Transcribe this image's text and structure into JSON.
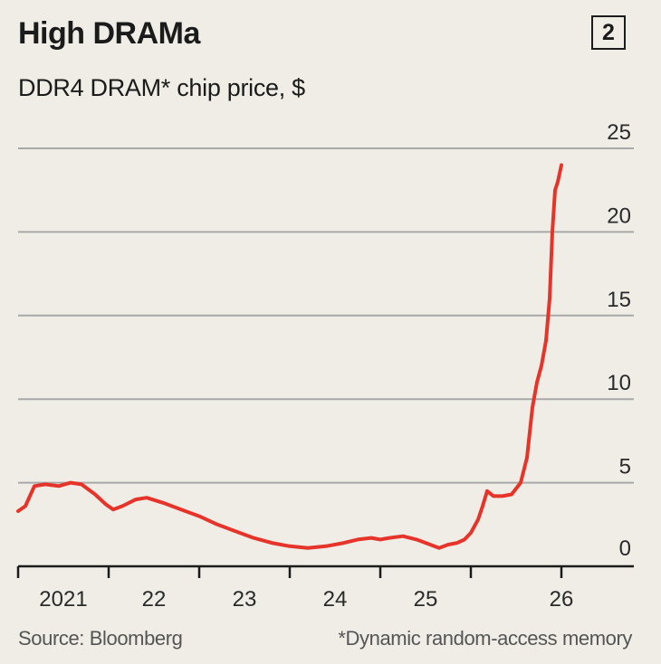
{
  "badge": "2",
  "source": "Source: Bloomberg",
  "footnote": "*Dynamic random-access memory",
  "colors": {
    "line": "#e6342b",
    "grid": "#a9a9a9",
    "axis": "#1b1b1b",
    "background": "#efede5"
  },
  "chart_data": {
    "type": "line",
    "title": "High DRAMa",
    "subtitle": "DDR4 DRAM* chip price, $",
    "ylim": [
      0,
      25
    ],
    "y_ticks": [
      0,
      5,
      10,
      15,
      20,
      25
    ],
    "x_start": 2020.0,
    "x_ticks": [
      2021,
      2022,
      2023,
      2024,
      2025,
      2026
    ],
    "x_tick_labels": [
      "2021",
      "22",
      "23",
      "24",
      "25",
      "26"
    ],
    "grid": true,
    "series": [
      {
        "values": [
          {
            "x": 2020.0,
            "y": 3.3
          },
          {
            "x": 2020.08,
            "y": 3.6
          },
          {
            "x": 2020.18,
            "y": 4.8
          },
          {
            "x": 2020.3,
            "y": 4.9
          },
          {
            "x": 2020.45,
            "y": 4.8
          },
          {
            "x": 2020.58,
            "y": 5.0
          },
          {
            "x": 2020.7,
            "y": 4.9
          },
          {
            "x": 2020.85,
            "y": 4.3
          },
          {
            "x": 2020.97,
            "y": 3.7
          },
          {
            "x": 2021.05,
            "y": 3.4
          },
          {
            "x": 2021.15,
            "y": 3.6
          },
          {
            "x": 2021.3,
            "y": 4.0
          },
          {
            "x": 2021.42,
            "y": 4.1
          },
          {
            "x": 2021.6,
            "y": 3.8
          },
          {
            "x": 2021.8,
            "y": 3.4
          },
          {
            "x": 2022.0,
            "y": 3.0
          },
          {
            "x": 2022.2,
            "y": 2.5
          },
          {
            "x": 2022.4,
            "y": 2.1
          },
          {
            "x": 2022.6,
            "y": 1.7
          },
          {
            "x": 2022.8,
            "y": 1.4
          },
          {
            "x": 2023.0,
            "y": 1.2
          },
          {
            "x": 2023.2,
            "y": 1.1
          },
          {
            "x": 2023.4,
            "y": 1.2
          },
          {
            "x": 2023.6,
            "y": 1.4
          },
          {
            "x": 2023.75,
            "y": 1.6
          },
          {
            "x": 2023.9,
            "y": 1.7
          },
          {
            "x": 2024.0,
            "y": 1.6
          },
          {
            "x": 2024.1,
            "y": 1.7
          },
          {
            "x": 2024.25,
            "y": 1.8
          },
          {
            "x": 2024.4,
            "y": 1.6
          },
          {
            "x": 2024.55,
            "y": 1.3
          },
          {
            "x": 2024.65,
            "y": 1.1
          },
          {
            "x": 2024.75,
            "y": 1.3
          },
          {
            "x": 2024.85,
            "y": 1.4
          },
          {
            "x": 2024.93,
            "y": 1.6
          },
          {
            "x": 2025.0,
            "y": 2.0
          },
          {
            "x": 2025.08,
            "y": 2.8
          },
          {
            "x": 2025.13,
            "y": 3.6
          },
          {
            "x": 2025.18,
            "y": 4.5
          },
          {
            "x": 2025.25,
            "y": 4.2
          },
          {
            "x": 2025.35,
            "y": 4.2
          },
          {
            "x": 2025.45,
            "y": 4.3
          },
          {
            "x": 2025.55,
            "y": 5.0
          },
          {
            "x": 2025.62,
            "y": 6.5
          },
          {
            "x": 2025.68,
            "y": 9.5
          },
          {
            "x": 2025.73,
            "y": 11.0
          },
          {
            "x": 2025.78,
            "y": 12.0
          },
          {
            "x": 2025.83,
            "y": 13.5
          },
          {
            "x": 2025.87,
            "y": 16.0
          },
          {
            "x": 2025.9,
            "y": 20.0
          },
          {
            "x": 2025.93,
            "y": 22.5
          },
          {
            "x": 2025.96,
            "y": 23.0
          },
          {
            "x": 2026.0,
            "y": 24.0
          }
        ]
      }
    ]
  }
}
